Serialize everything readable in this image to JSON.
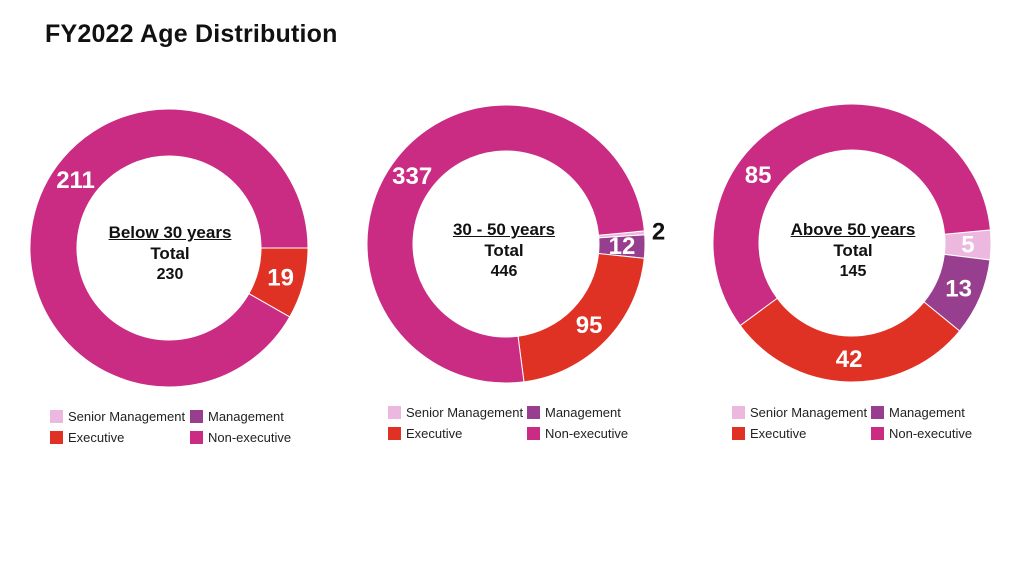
{
  "page": {
    "title": "FY2022 Age Distribution"
  },
  "colors": {
    "Senior Management": "#edb8e0",
    "Management": "#973f8e",
    "Executive": "#e03224",
    "Non-executive": "#c92c82"
  },
  "legend": [
    "Senior Management",
    "Management",
    "Executive",
    "Non-executive"
  ],
  "chart_data": [
    {
      "type": "pie",
      "category": "Below 30 years",
      "total_label": "Total",
      "total": "230",
      "slices": [
        {
          "name": "Senior Management",
          "value": 0,
          "label": ""
        },
        {
          "name": "Management",
          "value": 0,
          "label": ""
        },
        {
          "name": "Executive",
          "value": 19,
          "label": "19"
        },
        {
          "name": "Non-executive",
          "value": 211,
          "label": "211"
        }
      ]
    },
    {
      "type": "pie",
      "category": "30 - 50 years",
      "total_label": "Total",
      "total": "446",
      "slices": [
        {
          "name": "Senior Management",
          "value": 2,
          "label": "2"
        },
        {
          "name": "Management",
          "value": 12,
          "label": "12"
        },
        {
          "name": "Executive",
          "value": 95,
          "label": "95"
        },
        {
          "name": "Non-executive",
          "value": 337,
          "label": "337"
        }
      ]
    },
    {
      "type": "pie",
      "category": "Above 50 years",
      "total_label": "Total",
      "total": "145",
      "slices": [
        {
          "name": "Senior Management",
          "value": 5,
          "label": "5"
        },
        {
          "name": "Management",
          "value": 13,
          "label": "13"
        },
        {
          "name": "Executive",
          "value": 42,
          "label": "42"
        },
        {
          "name": "Non-executive",
          "value": 85,
          "label": "85"
        }
      ]
    }
  ]
}
